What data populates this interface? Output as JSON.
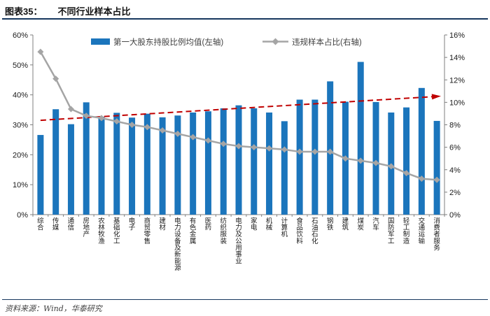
{
  "header": {
    "figure_label": "图表35：",
    "title": "不同行业样本占比"
  },
  "footer": {
    "source": "资料来源：Wind，华泰研究"
  },
  "colors": {
    "bar_blue": "#1B75BC",
    "line_gray": "#A5A5A5",
    "trend_red": "#C00000",
    "rule_navy": "#17375e",
    "axis_gray": "#7f7f7f",
    "tick_text": "#1a1a1a",
    "legend_text": "#404040"
  },
  "chart_data": {
    "type": "bar",
    "subtype": "dual-axis bar + line with trend arrow",
    "title": "不同行业样本占比",
    "legend_position": "top",
    "grid": false,
    "categories": [
      "综合",
      "传媒",
      "通信",
      "房地产",
      "农林牧渔",
      "基础化工",
      "电子",
      "商贸零售",
      "建材",
      "电力设备及新能源",
      "有色金属",
      "医药",
      "纺织服装",
      "电力及公用事业",
      "家电",
      "机械",
      "计算机",
      "食品饮料",
      "石油石化",
      "钢铁",
      "建筑",
      "煤炭",
      "汽车",
      "国防军工",
      "轻工制造",
      "交通运输",
      "消费者服务"
    ],
    "series": [
      {
        "name": "第一大股东持股比例均值(左轴)",
        "type": "bar",
        "axis": "left",
        "color": "#1B75BC",
        "values": [
          26.6,
          35.2,
          30.2,
          37.5,
          32.7,
          34.0,
          32.4,
          33.7,
          32.5,
          33.1,
          34.1,
          34.5,
          35.5,
          36.5,
          35.5,
          34.1,
          31.2,
          38.4,
          38.4,
          44.5,
          37.7,
          51.0,
          37.6,
          34.1,
          35.8,
          42.3,
          31.3
        ]
      },
      {
        "name": "违规样本占比(右轴)",
        "type": "line",
        "axis": "right",
        "color": "#A5A5A5",
        "marker": "diamond",
        "values": [
          14.5,
          12.1,
          9.4,
          8.8,
          8.6,
          8.3,
          8.0,
          7.8,
          7.5,
          7.2,
          6.9,
          6.6,
          6.3,
          6.1,
          6.0,
          5.9,
          5.8,
          5.6,
          5.6,
          5.6,
          5.0,
          4.8,
          4.6,
          4.3,
          3.7,
          3.2,
          3.1
        ]
      }
    ],
    "trend_line": {
      "axis": "right",
      "style": "dashed-arrow",
      "color": "#C00000",
      "start_value": 8.4,
      "end_value": 10.5
    },
    "left_axis": {
      "min": 0,
      "max": 60,
      "step": 10,
      "unit": "%",
      "tick_labels": [
        "0%",
        "10%",
        "20%",
        "30%",
        "40%",
        "50%",
        "60%"
      ]
    },
    "right_axis": {
      "min": 0,
      "max": 16,
      "step": 2,
      "unit": "%",
      "tick_labels": [
        "0%",
        "2%",
        "4%",
        "6%",
        "8%",
        "10%",
        "12%",
        "14%",
        "16%"
      ]
    }
  }
}
